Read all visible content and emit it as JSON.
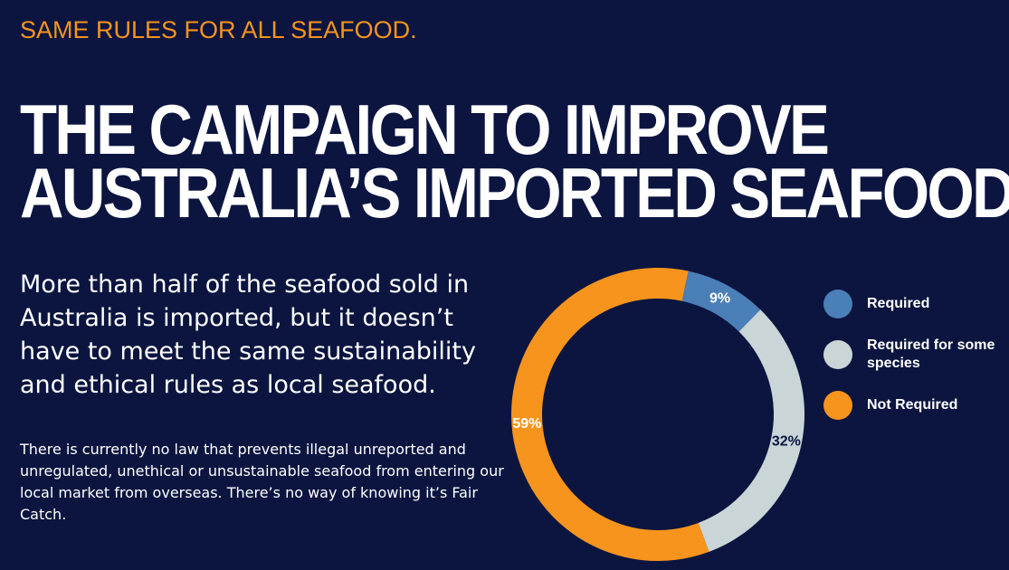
{
  "header": {
    "eyebrow": "SAME RULES FOR ALL SEAFOOD.",
    "title_lines": [
      "THE CAMPAIGN TO IMPROVE",
      "AUSTRALIA’S IMPORTED SEAFOOD"
    ]
  },
  "intro": "More than half of the seafood sold in Australia is imported, but it doesn’t have to meet the same sustainability and ethical rules as local seafood.",
  "body": "There is currently no law that prevents illegal unreported and unregulated, unethical or unsustainable seafood from entering our local market from overseas. There’s no way of knowing it’s Fair Catch.",
  "chart_data": {
    "type": "donut",
    "categories": [
      "Required",
      "Required for some species",
      "Not Required"
    ],
    "values": [
      9,
      32,
      59
    ],
    "value_labels": [
      "9%",
      "32%",
      "59%"
    ],
    "colors": [
      "#4a7fb8",
      "#c9d5d7",
      "#f7941d"
    ],
    "legend": "right"
  }
}
